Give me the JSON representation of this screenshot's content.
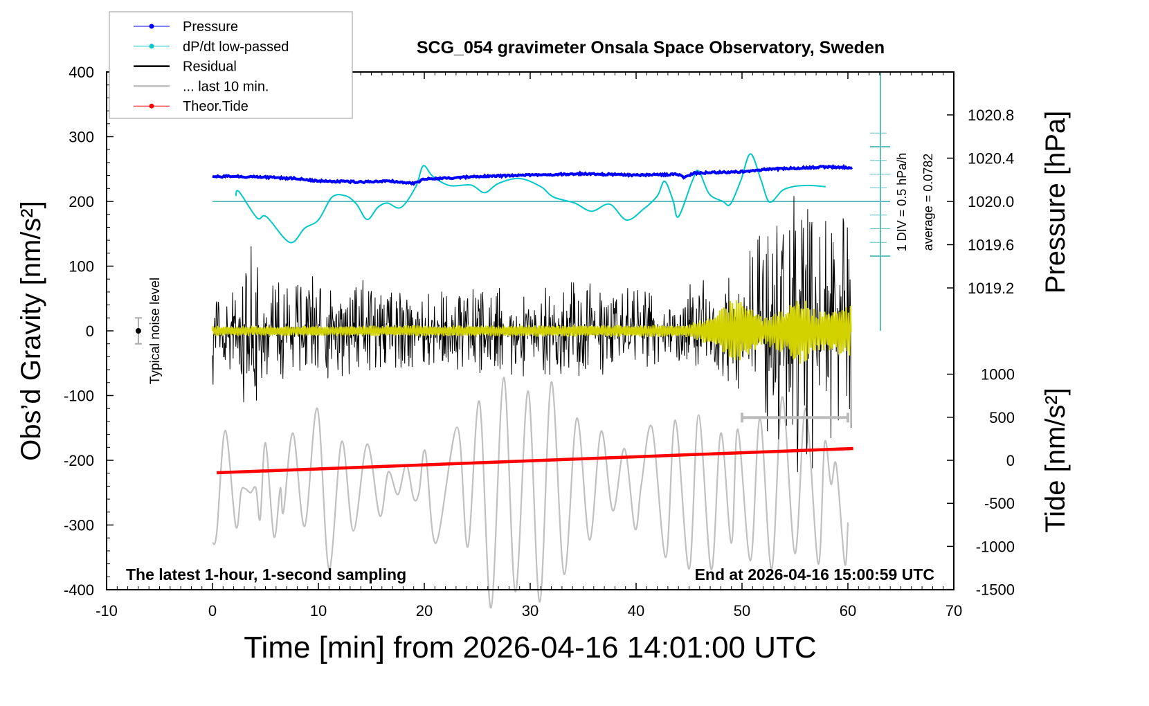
{
  "chart_data": {
    "type": "line",
    "title": "SCG_054 gravimeter Onsala Space Observatory, Sweden",
    "xlabel": "Time [min] from 2026-04-16 14:01:00 UTC",
    "ylabel": "Obs’d Gravity [nm/s²]",
    "ylabel_right_top": "Pressure [hPa]",
    "ylabel_right_bottom": "Tide [nm/s²]",
    "xlim": [
      -10,
      70
    ],
    "ylim": [
      -400,
      400
    ],
    "pressure_ylim_ticks": [
      1019.2,
      1019.6,
      1020.0,
      1020.4,
      1020.8
    ],
    "tide_ticks": [
      1000,
      500,
      0,
      -500,
      -1000,
      -1500
    ],
    "x_ticks": [
      -10,
      0,
      10,
      20,
      30,
      40,
      50,
      60,
      70
    ],
    "y_ticks": [
      400,
      300,
      200,
      100,
      0,
      -100,
      -200,
      -300,
      -400
    ],
    "legend_placement": "top-left",
    "legend": [
      {
        "label": "Pressure",
        "color": "#0000ff",
        "marker": "dot"
      },
      {
        "label": "dP/dt low-passed",
        "color": "#00c8c8",
        "marker": "dot"
      },
      {
        "label": "Residual",
        "color": "#000000",
        "marker": "line"
      },
      {
        "label": "... last 10 min.",
        "color": "#bebebe",
        "marker": "line"
      },
      {
        "label": "Theor.Tide",
        "color": "#ff0000",
        "marker": "dot"
      }
    ],
    "annotations": {
      "noise_label": "Typical noise level",
      "div_label": "1 DIV = 0.5 hPa/h",
      "average_label": "average = 0.0782",
      "bottom_left": "The latest 1-hour, 1-second sampling",
      "bottom_right": "End at 2026-04-16 15:00:59 UTC"
    },
    "noise_level": {
      "t": -7,
      "value": 0,
      "error": 20
    },
    "last10_marker": {
      "t_start": 50,
      "t_end": 60,
      "value": -134
    },
    "series": {
      "pressure_hPa": [
        [
          0,
          1020.23
        ],
        [
          2,
          1020.232
        ],
        [
          5,
          1020.224
        ],
        [
          8,
          1020.211
        ],
        [
          10,
          1020.19
        ],
        [
          14,
          1020.179
        ],
        [
          17,
          1020.186
        ],
        [
          19,
          1020.166
        ],
        [
          20,
          1020.205
        ],
        [
          25,
          1020.23
        ],
        [
          30,
          1020.243
        ],
        [
          35,
          1020.256
        ],
        [
          40,
          1020.243
        ],
        [
          44,
          1020.25
        ],
        [
          44.5,
          1020.218
        ],
        [
          45.5,
          1020.262
        ],
        [
          50,
          1020.275
        ],
        [
          52,
          1020.294
        ],
        [
          55,
          1020.307
        ],
        [
          58,
          1020.32
        ],
        [
          60,
          1020.314
        ],
        [
          60.5,
          1020.316
        ]
      ],
      "dpdt_hPa_per_h": [
        [
          2.2,
          0.1
        ],
        [
          2.5,
          0.18
        ],
        [
          4.2,
          -0.3
        ],
        [
          5.1,
          -0.28
        ],
        [
          7.3,
          -0.75
        ],
        [
          8.7,
          -0.49
        ],
        [
          10,
          -0.34
        ],
        [
          11.3,
          0.08
        ],
        [
          12.6,
          0.1
        ],
        [
          13.6,
          -0.05
        ],
        [
          14.6,
          -0.33
        ],
        [
          15.6,
          -0.11
        ],
        [
          16.5,
          -0.03
        ],
        [
          17.8,
          -0.11
        ],
        [
          19.2,
          0.27
        ],
        [
          19.9,
          0.65
        ],
        [
          20.8,
          0.46
        ],
        [
          22.4,
          0.29
        ],
        [
          24.4,
          0.3
        ],
        [
          25.7,
          0.16
        ],
        [
          27,
          0.33
        ],
        [
          29,
          0.42
        ],
        [
          31,
          0.27
        ],
        [
          32.2,
          0.08
        ],
        [
          34.2,
          -0.03
        ],
        [
          35.8,
          -0.18
        ],
        [
          37.5,
          -0.05
        ],
        [
          39.1,
          -0.34
        ],
        [
          40.7,
          -0.14
        ],
        [
          42,
          0.1
        ],
        [
          42.7,
          0.37
        ],
        [
          43.5,
          0.01
        ],
        [
          44,
          -0.28
        ],
        [
          45.3,
          0.37
        ],
        [
          45.9,
          0.56
        ],
        [
          46.9,
          0.14
        ],
        [
          48.2,
          0
        ],
        [
          48.9,
          -0.05
        ],
        [
          49.9,
          0.39
        ],
        [
          50.8,
          0.87
        ],
        [
          51.8,
          0.39
        ],
        [
          52.6,
          -0.01
        ],
        [
          53.8,
          0.2
        ],
        [
          54.8,
          0.27
        ],
        [
          55.8,
          0.29
        ],
        [
          56.7,
          0.29
        ],
        [
          57.9,
          0.27
        ]
      ],
      "theor_tide_nm_s2": [
        [
          0.4,
          -145
        ],
        [
          60.5,
          137
        ]
      ],
      "residual_envelope_nm_s2": [
        [
          0,
          45
        ],
        [
          2,
          50
        ],
        [
          3.5,
          120
        ],
        [
          5,
          60
        ],
        [
          10,
          60
        ],
        [
          15,
          50
        ],
        [
          20,
          45
        ],
        [
          25,
          50
        ],
        [
          30,
          55
        ],
        [
          35,
          60
        ],
        [
          40,
          50
        ],
        [
          45,
          40
        ],
        [
          48,
          50
        ],
        [
          50,
          90
        ],
        [
          52,
          130
        ],
        [
          54,
          180
        ],
        [
          56,
          170
        ],
        [
          58,
          150
        ],
        [
          60,
          130
        ]
      ],
      "residual_filtered_envelope_nm_s2": [
        [
          0,
          8
        ],
        [
          45,
          10
        ],
        [
          47,
          25
        ],
        [
          49,
          50
        ],
        [
          51,
          45
        ],
        [
          52,
          20
        ],
        [
          54,
          40
        ],
        [
          55,
          65
        ],
        [
          56,
          50
        ],
        [
          57,
          30
        ],
        [
          59,
          45
        ],
        [
          60,
          40
        ]
      ],
      "last10_expanded_nm_s2": [
        [
          0,
          -328
        ],
        [
          0.4,
          -312
        ],
        [
          1.2,
          -154
        ],
        [
          2.2,
          -302
        ],
        [
          2.7,
          -248
        ],
        [
          3.1,
          -244
        ],
        [
          3.6,
          -250
        ],
        [
          4.1,
          -243
        ],
        [
          4.5,
          -291
        ],
        [
          5.0,
          -173
        ],
        [
          5.8,
          -318
        ],
        [
          6.4,
          -243
        ],
        [
          6.7,
          -280
        ],
        [
          7.6,
          -158
        ],
        [
          8.7,
          -302
        ],
        [
          9.9,
          -120
        ],
        [
          11.0,
          -368
        ],
        [
          12.2,
          -171
        ],
        [
          13.3,
          -309
        ],
        [
          14.6,
          -175
        ],
        [
          15.8,
          -286
        ],
        [
          16.6,
          -218
        ],
        [
          17.5,
          -253
        ],
        [
          18.3,
          -207
        ],
        [
          19.0,
          -259
        ],
        [
          19.5,
          -250
        ],
        [
          20.1,
          -186
        ],
        [
          21.1,
          -328
        ],
        [
          23.1,
          -149
        ],
        [
          24.1,
          -334
        ],
        [
          25.2,
          -109
        ],
        [
          26.3,
          -428
        ],
        [
          27.5,
          -72
        ],
        [
          28.6,
          -403
        ],
        [
          29.8,
          -93
        ],
        [
          30.9,
          -419
        ],
        [
          32.0,
          -79
        ],
        [
          33.2,
          -376
        ],
        [
          34.4,
          -135
        ],
        [
          35.6,
          -323
        ],
        [
          36.7,
          -155
        ],
        [
          37.8,
          -278
        ],
        [
          38.9,
          -182
        ],
        [
          39.9,
          -306
        ],
        [
          40.5,
          -237
        ],
        [
          41.5,
          -149
        ],
        [
          42.8,
          -350
        ],
        [
          43.7,
          -138
        ],
        [
          45.0,
          -368
        ],
        [
          45.9,
          -130
        ],
        [
          47.1,
          -369
        ],
        [
          48.0,
          -158
        ],
        [
          49.0,
          -328
        ],
        [
          49.6,
          -152
        ],
        [
          50.8,
          -355
        ],
        [
          51.7,
          -135
        ],
        [
          52.8,
          -368
        ],
        [
          53.8,
          -102
        ],
        [
          55.0,
          -344
        ],
        [
          56.0,
          -120
        ],
        [
          57.2,
          -360
        ],
        [
          57.8,
          -173
        ],
        [
          58.4,
          -237
        ],
        [
          58.9,
          -207
        ],
        [
          59.7,
          -360
        ],
        [
          60.0,
          -296
        ]
      ]
    },
    "colors": {
      "pressure": "#0000ff",
      "dpdt": "#00c8c8",
      "dpdt_axis": "#5fbfbf",
      "residual": "#000000",
      "filtered": "#d2d200",
      "last10": "#c0c0c0",
      "tide": "#ff0000"
    }
  }
}
